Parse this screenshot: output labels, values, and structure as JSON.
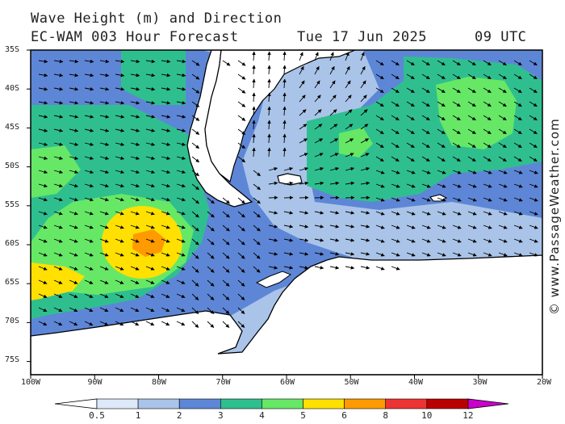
{
  "header": {
    "title_line1": "Wave Height (m) and Direction",
    "model": "EC-WAM 003 Hour Forecast",
    "date": "Tue 17 Jun 2025",
    "time": "09 UTC"
  },
  "map": {
    "lat_labels": [
      "35S",
      "40S",
      "45S",
      "50S",
      "55S",
      "60S",
      "65S",
      "70S",
      "75S"
    ],
    "lon_labels": [
      "100W",
      "90W",
      "80W",
      "70W",
      "60W",
      "50W",
      "40W",
      "30W",
      "20W"
    ]
  },
  "colorbar": {
    "tick_labels": [
      "0.5",
      "1",
      "2",
      "3",
      "4",
      "5",
      "6",
      "8",
      "10",
      "12"
    ],
    "colors": [
      "#ffffff",
      "#dde8f8",
      "#a9c4e8",
      "#5e86d6",
      "#2fbf8f",
      "#66e866",
      "#ffe000",
      "#ff9a00",
      "#ee3333",
      "#bb0000",
      "#cc00cc"
    ]
  },
  "credit": "© www.PassageWeather.com",
  "colors": {
    "land": "#ffffff",
    "coast": "#000000"
  }
}
